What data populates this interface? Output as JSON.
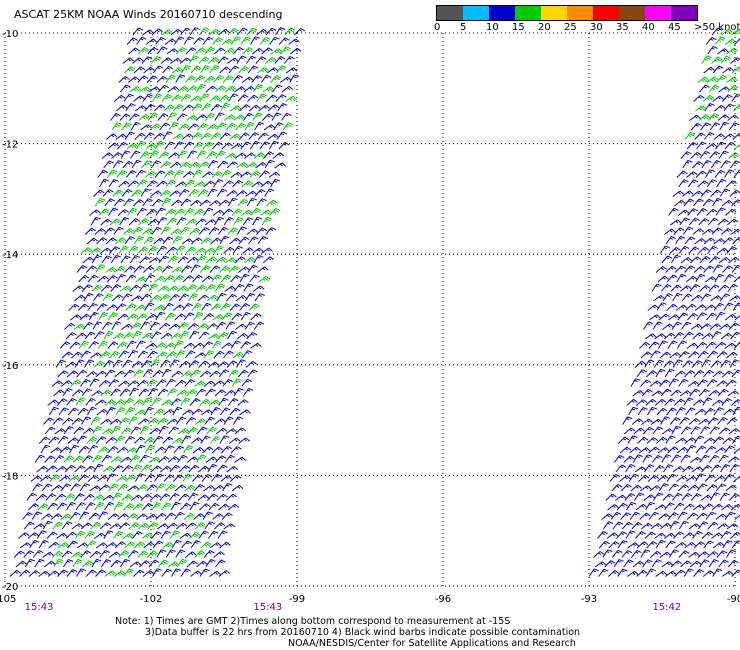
{
  "title": "ASCAT 25KM NOAA Winds 20160710 descending",
  "legend": {
    "colors": [
      "#555555",
      "#00bfff",
      "#0000cd",
      "#00cc00",
      "#ffd700",
      "#ff8c00",
      "#ff0000",
      "#8b4513",
      "#ff00ff",
      "#8000c0"
    ],
    "labels": [
      "0",
      "5",
      "10",
      "15",
      "20",
      "25",
      "30",
      "35",
      "40",
      "45",
      ">50 knots"
    ]
  },
  "map": {
    "lon_min": -105,
    "lon_max": -90,
    "lat_min": -20,
    "lat_max": -10,
    "lon_ticks": [
      "-105",
      "-102",
      "-99",
      "-96",
      "-93",
      "-90"
    ],
    "lat_ticks": [
      "-10",
      "-12",
      "-14",
      "-16",
      "-18",
      "-20"
    ],
    "pass_times": [
      {
        "label": "15:43",
        "lon": -104.3
      },
      {
        "label": "15:43",
        "lon": -99.6
      },
      {
        "label": "15:42",
        "lon": -91.4
      }
    ],
    "swaths": [
      {
        "name": "west-swath",
        "west_top_lon": -102.5,
        "east_top_lon": -99.0,
        "west_bottom_lon": -105.0,
        "east_bottom_lon": -100.6
      },
      {
        "name": "east-swath",
        "west_top_lon": -90.6,
        "east_top_lon": -90.0,
        "west_bottom_lon": -93.1,
        "east_bottom_lon": -90.0
      }
    ],
    "wind_colors": [
      "#0000cd",
      "#00cc00",
      "#00bfff"
    ]
  },
  "notes": [
    "Note: 1) Times are GMT 2)Times along bottom correspond to measurement at -15S",
    "3)Data buffer is 22 hrs from 20160710 4) Black wind barbs indicate possible contamination",
    "NOAA/NESDIS/Center for Satellite Applications and Research"
  ]
}
